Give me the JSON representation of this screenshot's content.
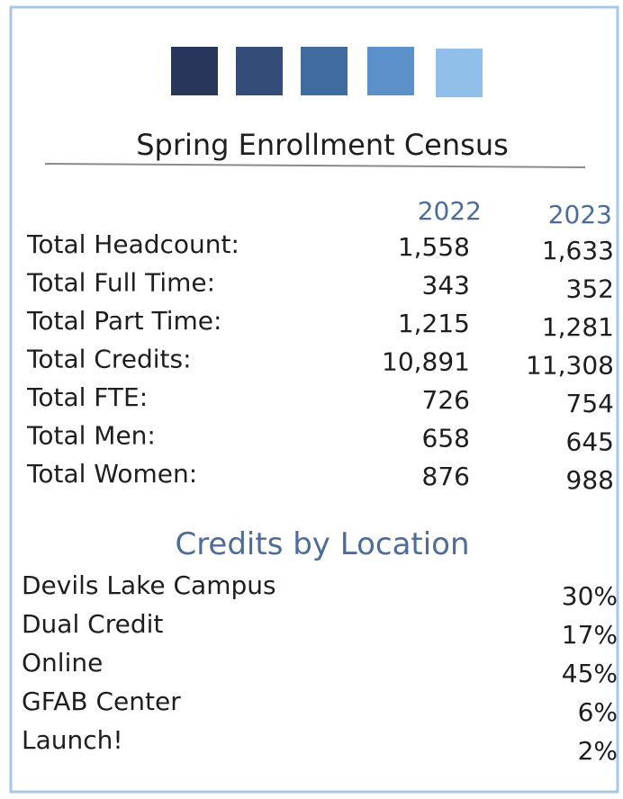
{
  "header": {
    "title": "Spring Enrollment Census"
  },
  "table": {
    "columns": [
      "2022",
      "2023"
    ],
    "rows": [
      [
        "Total Headcount:",
        "1,558",
        "1,633"
      ],
      [
        "Total Full Time:",
        "343",
        "352"
      ],
      [
        "Total Part Time:",
        "1,215",
        "1,281"
      ],
      [
        "Total Credits:",
        "10,891",
        "11,308"
      ],
      [
        "Total FTE:",
        "726",
        "754"
      ],
      [
        "Total Men:",
        "658",
        "645"
      ],
      [
        "Total Women:",
        "876",
        "988"
      ]
    ]
  },
  "locations": {
    "title": "Credits by Location",
    "rows": [
      [
        "Devils Lake Campus",
        "30%"
      ],
      [
        "Dual Credit",
        "17%"
      ],
      [
        "Online",
        "45%"
      ],
      [
        "GFAB Center",
        "6%"
      ],
      [
        "Launch!",
        "2%"
      ]
    ]
  }
}
